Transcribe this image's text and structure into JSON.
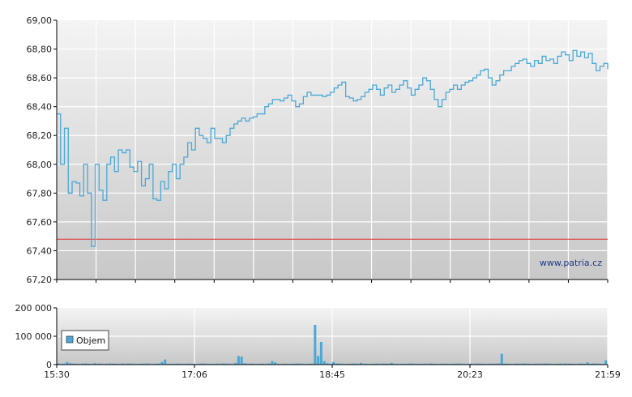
{
  "watermark": "www.patria.cz",
  "chart_data": [
    {
      "type": "line",
      "title": "",
      "xlabel": "",
      "ylabel": "",
      "ylim": [
        67.2,
        69.0
      ],
      "yticks": [
        "69,00",
        "68,80",
        "68,60",
        "68,40",
        "68,20",
        "68,00",
        "67,80",
        "67,60",
        "67,40",
        "67,20"
      ],
      "reference_line": 67.48,
      "grid": true,
      "line_color": "#4aa8d8",
      "reference_color": "#e0312c",
      "series": [
        {
          "values": [
            68.35,
            68.0,
            68.25,
            67.8,
            67.88,
            67.87,
            67.78,
            68.0,
            67.8,
            67.43,
            68.0,
            67.82,
            67.75,
            68.0,
            68.05,
            67.95,
            68.1,
            68.08,
            68.1,
            67.98,
            67.95,
            68.02,
            67.85,
            67.9,
            68.0,
            67.76,
            67.75,
            67.88,
            67.83,
            67.95,
            68.0,
            67.9,
            68.0,
            68.05,
            68.15,
            68.1,
            68.25,
            68.2,
            68.18,
            68.15,
            68.25,
            68.18,
            68.18,
            68.15,
            68.2,
            68.25,
            68.28,
            68.3,
            68.32,
            68.3,
            68.32,
            68.33,
            68.35,
            68.35,
            68.4,
            68.42,
            68.45,
            68.45,
            68.44,
            68.46,
            68.48,
            68.44,
            68.4,
            68.42,
            68.47,
            68.5,
            68.48,
            68.48,
            68.48,
            68.47,
            68.48,
            68.5,
            68.53,
            68.55,
            68.57,
            68.47,
            68.46,
            68.44,
            68.45,
            68.47,
            68.5,
            68.52,
            68.55,
            68.52,
            68.48,
            68.53,
            68.55,
            68.5,
            68.52,
            68.55,
            68.58,
            68.53,
            68.48,
            68.52,
            68.55,
            68.6,
            68.58,
            68.52,
            68.45,
            68.4,
            68.45,
            68.5,
            68.52,
            68.55,
            68.52,
            68.55,
            68.57,
            68.58,
            68.6,
            68.62,
            68.65,
            68.66,
            68.6,
            68.55,
            68.58,
            68.62,
            68.65,
            68.65,
            68.68,
            68.7,
            68.72,
            68.73,
            68.7,
            68.68,
            68.72,
            68.7,
            68.75,
            68.72,
            68.73,
            68.7,
            68.75,
            68.78,
            68.76,
            68.72,
            68.79,
            68.75,
            68.78,
            68.74,
            68.77,
            68.7,
            68.65,
            68.68,
            68.7,
            68.66
          ]
        }
      ]
    },
    {
      "type": "bar",
      "title": "",
      "xlabel": "",
      "ylabel": "",
      "ylim": [
        0,
        200000
      ],
      "yticks": [
        "200 000",
        "100 000",
        "0"
      ],
      "xticks": [
        "15:30",
        "17:06",
        "18:45",
        "20:23",
        "21:59"
      ],
      "grid": true,
      "legend": {
        "entries": [
          "Objem"
        ],
        "placement": "bottom-left"
      },
      "bar_color": "#4aa8d8",
      "series": [
        {
          "name": "Objem",
          "values": [
            4000,
            2500,
            3000,
            9000,
            5000,
            3500,
            3000,
            2500,
            3500,
            4000,
            3000,
            2500,
            5000,
            3000,
            3500,
            2500,
            3000,
            4000,
            3500,
            3000,
            2500,
            3500,
            3000,
            4000,
            3500,
            3000,
            2500,
            3000,
            3500,
            4000,
            3000,
            2500,
            3000,
            3500,
            9000,
            18000,
            3000,
            2500,
            3000,
            3500,
            3000,
            2500,
            3000,
            3500,
            3000,
            2500,
            3000,
            4000,
            3500,
            3000,
            2500,
            3000,
            3500,
            3000,
            4000,
            3500,
            3000,
            2500,
            6000,
            30000,
            28000,
            5000,
            3000,
            3500,
            3000,
            2500,
            3000,
            3500,
            3000,
            4000,
            12000,
            8000,
            3000,
            2500,
            3500,
            3000,
            2500,
            3000,
            4000,
            3500,
            3000,
            2500,
            3000,
            3500,
            140000,
            30000,
            80000,
            12000,
            5000,
            3000,
            9000,
            4000,
            3500,
            3000,
            2500,
            3000,
            3500,
            4000,
            3000,
            6000,
            3500,
            3000,
            2500,
            3000,
            3500,
            3000,
            4000,
            3500,
            3000,
            6000,
            3000,
            2500,
            3000,
            3500,
            3000,
            4000,
            3500,
            3000,
            2500,
            3000,
            3500,
            3000,
            4000,
            3000,
            2500,
            3000,
            3500,
            3000,
            2500,
            3000,
            3500,
            4000,
            3000,
            2500,
            3000,
            3500,
            3000,
            4000,
            3500,
            3000,
            2500,
            3000,
            3500,
            3000,
            4000,
            38000,
            3500,
            3000,
            2500,
            3000,
            3500,
            3000,
            4000,
            3500,
            3000,
            2500,
            3000,
            3500,
            3000,
            4000,
            3500,
            3000,
            2500,
            3000,
            3500,
            3000,
            4000,
            3500,
            3000,
            2500,
            3000,
            3500,
            3000,
            8000,
            3000,
            4000,
            3500,
            3000,
            2500,
            15000
          ]
        }
      ]
    }
  ]
}
